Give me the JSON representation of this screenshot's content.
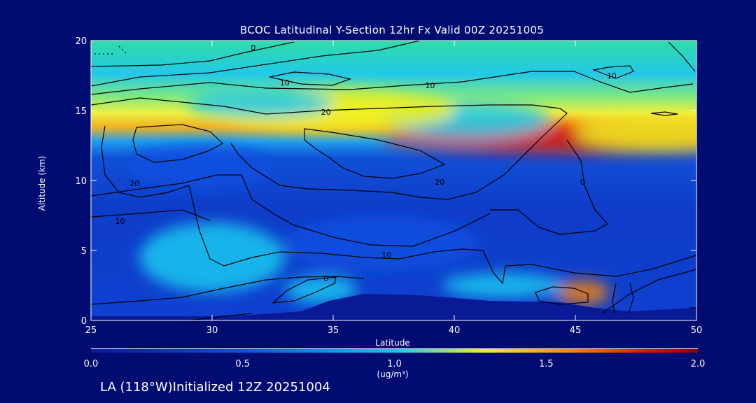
{
  "chart_data": {
    "type": "heatmap",
    "title": "BCOC Latitudinal Y-Section 12hr  Fx Valid 00Z 20251005",
    "xlabel": "Latitude",
    "ylabel": "Altitude (km)",
    "xlim": [
      25,
      50
    ],
    "ylim": [
      0,
      20
    ],
    "x_ticks": [
      "25",
      "30",
      "35",
      "40",
      "45",
      "50"
    ],
    "y_ticks": [
      "0",
      "5",
      "10",
      "15",
      "20"
    ],
    "colorbar": {
      "range": [
        0.0,
        2.0
      ],
      "ticks": [
        "0.0",
        "0.5",
        "1.0",
        "1.5",
        "2.0"
      ],
      "units": "(ug/m³)",
      "colors": [
        "#0a1a96",
        "#1050e0",
        "#18c8f0",
        "#f0f020",
        "#f08010",
        "#e01000",
        "#8a0000"
      ]
    },
    "contour_labels": [
      {
        "text": "0",
        "x": 31.7,
        "y": 19.5
      },
      {
        "text": "10",
        "x": 33.0,
        "y": 17.0
      },
      {
        "text": "10",
        "x": 39.0,
        "y": 16.8
      },
      {
        "text": "10",
        "x": 46.5,
        "y": 17.5
      },
      {
        "text": "20",
        "x": 34.7,
        "y": 14.9
      },
      {
        "text": "20",
        "x": 26.8,
        "y": 9.8
      },
      {
        "text": "20",
        "x": 39.4,
        "y": 9.9
      },
      {
        "text": "10",
        "x": 26.2,
        "y": 7.1
      },
      {
        "text": "10",
        "x": 37.2,
        "y": 4.7
      },
      {
        "text": "0",
        "x": 34.7,
        "y": 3.0
      },
      {
        "text": "0",
        "x": 45.3,
        "y": 9.9
      }
    ],
    "concentration_fields": [
      {
        "lat": 46.0,
        "alt": 13.0,
        "v": 0.8,
        "sx": 9.0,
        "sy": 1.1
      },
      {
        "lat": 48.5,
        "alt": 13.4,
        "v": 0.55,
        "sx": 3.5,
        "sy": 1.2
      },
      {
        "lat": 40.5,
        "alt": 14.3,
        "v": 0.45,
        "sx": 3.5,
        "sy": 1.3
      },
      {
        "lat": 35.0,
        "alt": 15.0,
        "v": 0.55,
        "sx": 5.0,
        "sy": 1.5
      },
      {
        "lat": 32.0,
        "alt": 15.5,
        "v": 0.3,
        "sx": 3.0,
        "sy": 1.0
      },
      {
        "lat": 45.3,
        "alt": 2.0,
        "v": 0.65,
        "sx": 1.1,
        "sy": 0.9
      },
      {
        "lat": 42.0,
        "alt": 2.5,
        "v": 0.35,
        "sx": 2.5,
        "sy": 0.9
      },
      {
        "lat": 34.5,
        "alt": 2.2,
        "v": 0.4,
        "sx": 1.5,
        "sy": 1.0
      },
      {
        "lat": 30.0,
        "alt": 4.5,
        "v": 0.25,
        "sx": 3.0,
        "sy": 2.5
      },
      {
        "lat": 37.0,
        "alt": 5.5,
        "v": 0.2,
        "sx": 4.0,
        "sy": 2.0
      },
      {
        "lat": 29.5,
        "alt": 11.0,
        "v": 0.12,
        "sx": 3.0,
        "sy": 1.5
      }
    ]
  },
  "footer": "LA (118°W)Initialized 12Z 20251004"
}
